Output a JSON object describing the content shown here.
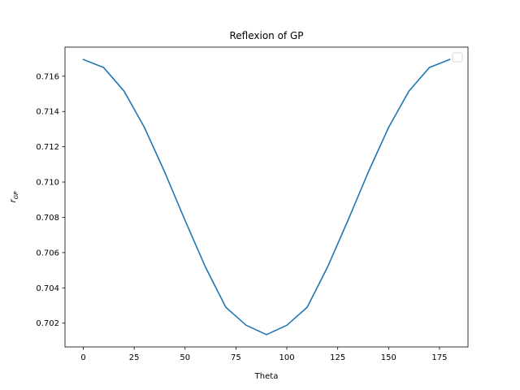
{
  "chart_data": {
    "type": "line",
    "title": "Reflexion of GP",
    "xlabel": "Theta",
    "ylabel_main": "r",
    "ylabel_sub": "GP",
    "xlim": [
      -9,
      189
    ],
    "ylim": [
      0.70065,
      0.71765
    ],
    "x_ticks": [
      0,
      25,
      50,
      75,
      100,
      125,
      150,
      175
    ],
    "y_ticks": [
      0.702,
      0.704,
      0.706,
      0.708,
      0.71,
      0.712,
      0.714,
      0.716
    ],
    "y_tick_labels": [
      "0.702",
      "0.704",
      "0.706",
      "0.708",
      "0.710",
      "0.712",
      "0.714",
      "0.716"
    ],
    "grid": false,
    "legend": {
      "placement": "top-right",
      "entries": []
    },
    "series": [
      {
        "color": "#1f77b4",
        "x": [
          0,
          10,
          20,
          30,
          40,
          50,
          60,
          70,
          80,
          90,
          100,
          110,
          120,
          130,
          140,
          150,
          160,
          170,
          180
        ],
        "y": [
          0.71695,
          0.71649,
          0.71516,
          0.7131,
          0.71056,
          0.70782,
          0.70518,
          0.7029,
          0.70188,
          0.70135,
          0.70188,
          0.7029,
          0.70518,
          0.70782,
          0.71056,
          0.7131,
          0.71516,
          0.71649,
          0.71695
        ]
      }
    ]
  }
}
